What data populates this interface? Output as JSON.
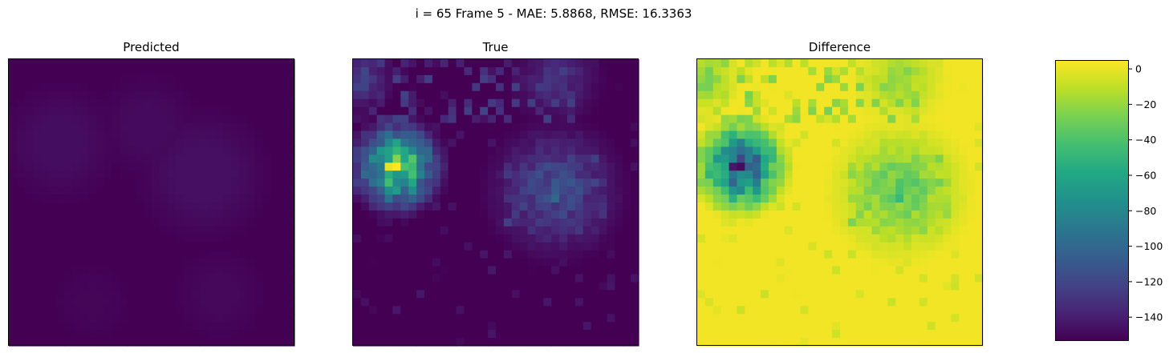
{
  "figure": {
    "suptitle": "i = 65 Frame 5 - MAE: 5.8868, RMSE: 16.3363"
  },
  "chart_data": [
    {
      "type": "heatmap",
      "title": "Predicted",
      "grid_size": [
        36,
        36
      ],
      "colormap": "viridis",
      "value_range": [
        -153,
        5
      ],
      "description_of_values": "mostly uniform low values (dark purple), smooth blobs slightly higher",
      "blobs": [
        {
          "cx": 6,
          "cy": 10,
          "r": 8,
          "level": -146
        },
        {
          "cx": 24,
          "cy": 14,
          "r": 9,
          "level": -145
        },
        {
          "cx": 17,
          "cy": 8,
          "r": 7,
          "level": -147
        },
        {
          "cx": 26,
          "cy": 29,
          "r": 6,
          "level": -148
        },
        {
          "cx": 10,
          "cy": 30,
          "r": 5,
          "level": -149
        }
      ],
      "base_level": -151
    },
    {
      "type": "heatmap",
      "title": "True",
      "grid_size": [
        36,
        36
      ],
      "colormap": "viridis",
      "value_range": [
        -153,
        5
      ],
      "hotspots": [
        {
          "cx": 5,
          "cy": 13,
          "r": 3.2,
          "level": 0
        },
        {
          "cx": 25,
          "cy": 16,
          "r": 4.5,
          "level": -105
        },
        {
          "cx": 0.5,
          "cy": 2,
          "r": 2.2,
          "level": -115
        },
        {
          "cx": 25,
          "cy": 2,
          "r": 3,
          "level": -125
        }
      ],
      "base_level": -153
    },
    {
      "type": "heatmap",
      "title": "Difference",
      "grid_size": [
        36,
        36
      ],
      "colormap": "viridis",
      "value_range": [
        -153,
        5
      ],
      "note": "Predicted minus True; mostly near 0 (yellow) with strong negative region at left",
      "base_level": 0
    }
  ],
  "colorbar": {
    "min": -153,
    "max": 5,
    "ticks": [
      0,
      -20,
      -40,
      -60,
      -80,
      -100,
      -120,
      -140
    ],
    "tick_labels": [
      "0",
      "−20",
      "−40",
      "−60",
      "−80",
      "−100",
      "−120",
      "−140"
    ]
  }
}
